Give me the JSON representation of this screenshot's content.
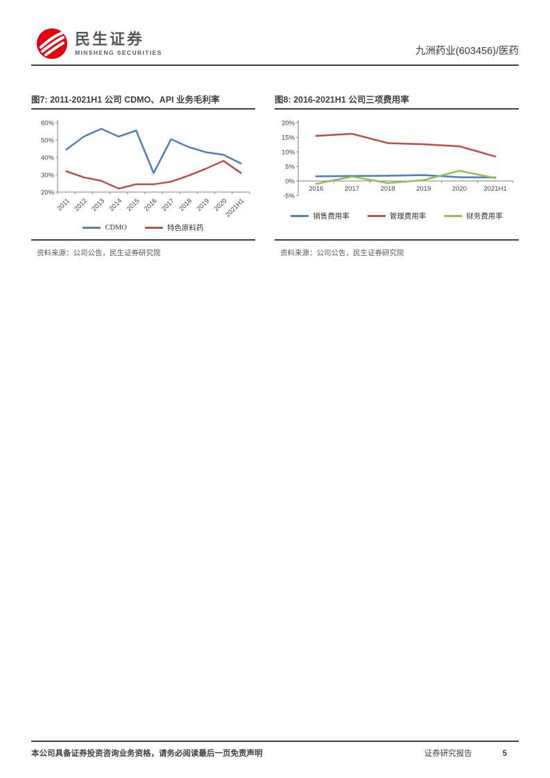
{
  "header": {
    "brand_cn": "民生证券",
    "brand_en": "MINSHENG SECURITIES",
    "stock_label": "九洲药业(603456)/医药"
  },
  "figures": [
    {
      "source": "资料来源：公司公告，民生证券研究院"
    },
    {
      "source": "资料来源：公司公告，民生证券研究院"
    }
  ],
  "chart_data": [
    {
      "type": "line",
      "title": "图7: 2011-2021H1 公司 CDMO、API 业务毛利率",
      "categories": [
        "2011",
        "2012",
        "2013",
        "2014",
        "2015",
        "2016",
        "2017",
        "2018",
        "2019",
        "2020",
        "2021H1"
      ],
      "series": [
        {
          "name": "CDMO",
          "color": "#4F81BD",
          "values": [
            44.5,
            52,
            56.5,
            52,
            55.5,
            31,
            50.5,
            46,
            43,
            41.5,
            36.5
          ]
        },
        {
          "name": "特色原料药",
          "color": "#C0504D",
          "values": [
            32,
            28.5,
            26.5,
            22,
            24.5,
            24.5,
            26,
            29.5,
            33.5,
            38,
            31
          ]
        }
      ],
      "ylim": [
        20,
        60
      ],
      "ytick_step": 10,
      "y_format": "percent",
      "x_axis_at": 20,
      "rotate_labels": 45,
      "grid": false,
      "legend_position": "bottom"
    },
    {
      "type": "line",
      "title": "图8: 2016-2021H1 公司三项费用率",
      "categories": [
        "2016",
        "2017",
        "2018",
        "2019",
        "2020",
        "2021H1"
      ],
      "series": [
        {
          "name": "销售费用率",
          "color": "#4F81BD",
          "values": [
            1.6,
            1.7,
            1.8,
            2.0,
            1.3,
            1.2
          ]
        },
        {
          "name": "管理费用率",
          "color": "#C0504D",
          "values": [
            15.5,
            16.2,
            13.0,
            12.6,
            11.9,
            8.4
          ]
        },
        {
          "name": "财务费用率",
          "color": "#9BBB59",
          "values": [
            -1.0,
            1.5,
            -0.7,
            0.3,
            3.5,
            1.0
          ]
        }
      ],
      "ylim": [
        -5,
        20
      ],
      "ytick_step": 5,
      "y_format": "percent",
      "x_axis_at": 0,
      "rotate_labels": 0,
      "grid": false,
      "legend_position": "bottom"
    }
  ],
  "footer": {
    "left": "本公司具备证券投资咨询业务资格，请务必阅读最后一页免责声明",
    "report_type": "证券研究报告",
    "page_number": "5"
  },
  "colors": {
    "brand_red": "#E60012",
    "rule_dark": "#3F3F3F",
    "series_blue": "#4F81BD",
    "series_red": "#C0504D",
    "series_green": "#9BBB59",
    "axis_gray": "#808080"
  }
}
